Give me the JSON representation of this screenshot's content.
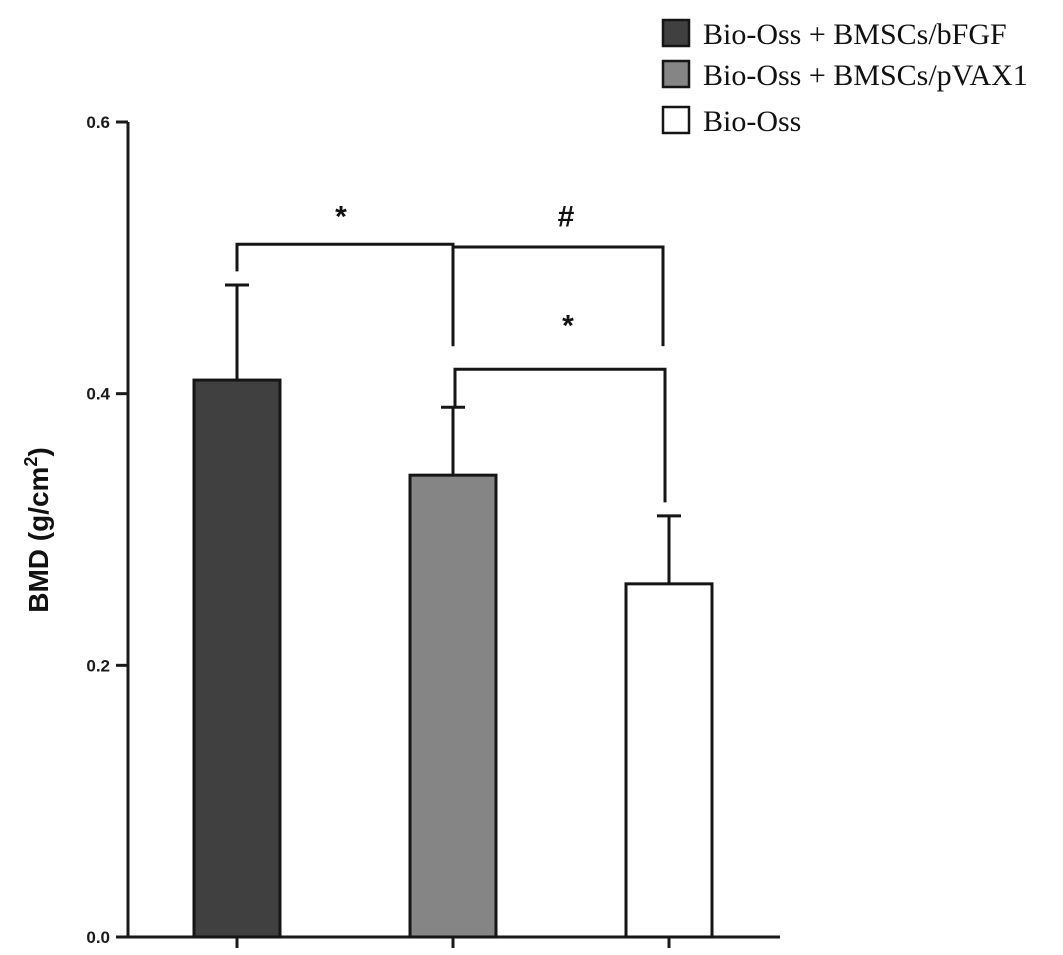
{
  "chart_data": {
    "type": "bar",
    "categories": [
      "Bio-Oss + BMSCs/bFGF",
      "Bio-Oss + BMSCs/pVAX1",
      "Bio-Oss"
    ],
    "values": [
      0.41,
      0.34,
      0.26
    ],
    "errors": [
      0.07,
      0.05,
      0.05
    ],
    "colors": [
      "#404040",
      "#858585",
      "#ffffff"
    ],
    "ylabel": "BMD (g/cm",
    "ylabel_sup": "2",
    "ylabel_close": ")",
    "ylim": [
      0,
      0.6
    ],
    "yticks": [
      {
        "value": 0.0,
        "label": "0.0"
      },
      {
        "value": 0.2,
        "label": "0.2"
      },
      {
        "value": 0.4,
        "label": "0.4"
      },
      {
        "value": 0.6,
        "label": "0.6"
      }
    ],
    "legend": {
      "position": "top-right",
      "entries": [
        {
          "label": "Bio-Oss + BMSCs/bFGF",
          "color": "#404040"
        },
        {
          "label": "Bio-Oss + BMSCs/pVAX1",
          "color": "#858585"
        },
        {
          "label": "Bio-Oss",
          "color": "#ffffff"
        }
      ]
    },
    "significance": [
      {
        "from": 0,
        "to": 1,
        "symbol": "*"
      },
      {
        "from": 1,
        "to": 2,
        "symbol": "#"
      },
      {
        "from": 1,
        "to": 2,
        "symbol": "*"
      }
    ],
    "grid": false
  }
}
